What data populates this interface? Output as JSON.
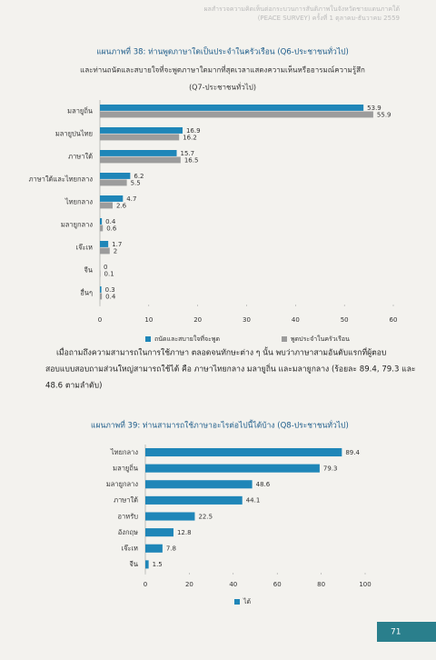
{
  "header": {
    "line1": "ผลสำรวจความคิดเห็นต่อกระบวนการสันติภาพในจังหวัดชายแดนภาคใต้",
    "line2": "(PEACE SURVEY) ครั้งที่ 1 ตุลาคม-ธันวาคม 2559"
  },
  "chart_data": [
    {
      "type": "hbar",
      "title": "แผนภาพที่ 38: ท่านพูดภาษาใดเป็นประจำในครัวเรือน (Q6-ประชาชนทั่วไป)",
      "subtitle": [
        "และท่านถนัดและสบายใจที่จะพูดภาษาใดมากที่สุดเวลาแสดงความเห็นหรืออารมณ์ความรู้สึก",
        "(Q7-ประชาชนทั่วไป)"
      ],
      "categories": [
        "มลายูถิ่น",
        "มลายูปนไทย",
        "ภาษาใต้",
        "ภาษาใต้และไทยกลาง",
        "ไทยกลาง",
        "มลายูกลาง",
        "เจ๊ะเห",
        "จีน",
        "อื่นๆ"
      ],
      "series": [
        {
          "name": "ถนัดและสบายใจที่จะพูด",
          "color": "#1f86b8",
          "values": [
            53.9,
            16.9,
            15.7,
            6.2,
            4.7,
            0.4,
            1.7,
            0,
            0.3
          ]
        },
        {
          "name": "พูดประจำในครัวเรือน",
          "color": "#9c9c9c",
          "values": [
            55.9,
            16.2,
            16.5,
            5.5,
            2.6,
            0.6,
            2,
            0.1,
            0.4
          ]
        }
      ],
      "xlim": [
        0,
        60
      ],
      "xticks": [
        0,
        10,
        20,
        30,
        40,
        50,
        60
      ]
    },
    {
      "type": "hbar",
      "title": "แผนภาพที่ 39: ท่านสามารถใช้ภาษาอะไรต่อไปนี้ได้บ้าง (Q8-ประชาชนทั่วไป)",
      "categories": [
        "ไทยกลาง",
        "มลายูถิ่น",
        "มลายูกลาง",
        "ภาษาใต้",
        "อาหรับ",
        "อังกฤษ",
        "เจ๊ะเห",
        "จีน"
      ],
      "series": [
        {
          "name": "ได้",
          "color": "#1f86b8",
          "values": [
            89.4,
            79.3,
            48.6,
            44.1,
            22.5,
            12.8,
            7.8,
            1.5
          ]
        }
      ],
      "xlim": [
        0,
        100
      ],
      "xticks": [
        0,
        20,
        40,
        60,
        80,
        100
      ]
    }
  ],
  "paragraph": [
    "เมื่อถามถึงความสามารถในการใช้ภาษา ตลอดจนทักษะต่าง ๆ นั้น พบว่าภาษาสามอันดับแรกที่ผู้ตอบ",
    "สอบแบบสอบถามส่วนใหญ่สามารถใช้ได้ คือ ภาษาไทยกลาง มลายูถิ่น และมลายูกลาง (ร้อยละ 89.4, 79.3 และ",
    "48.6 ตามลำดับ)"
  ],
  "page_number": "71"
}
